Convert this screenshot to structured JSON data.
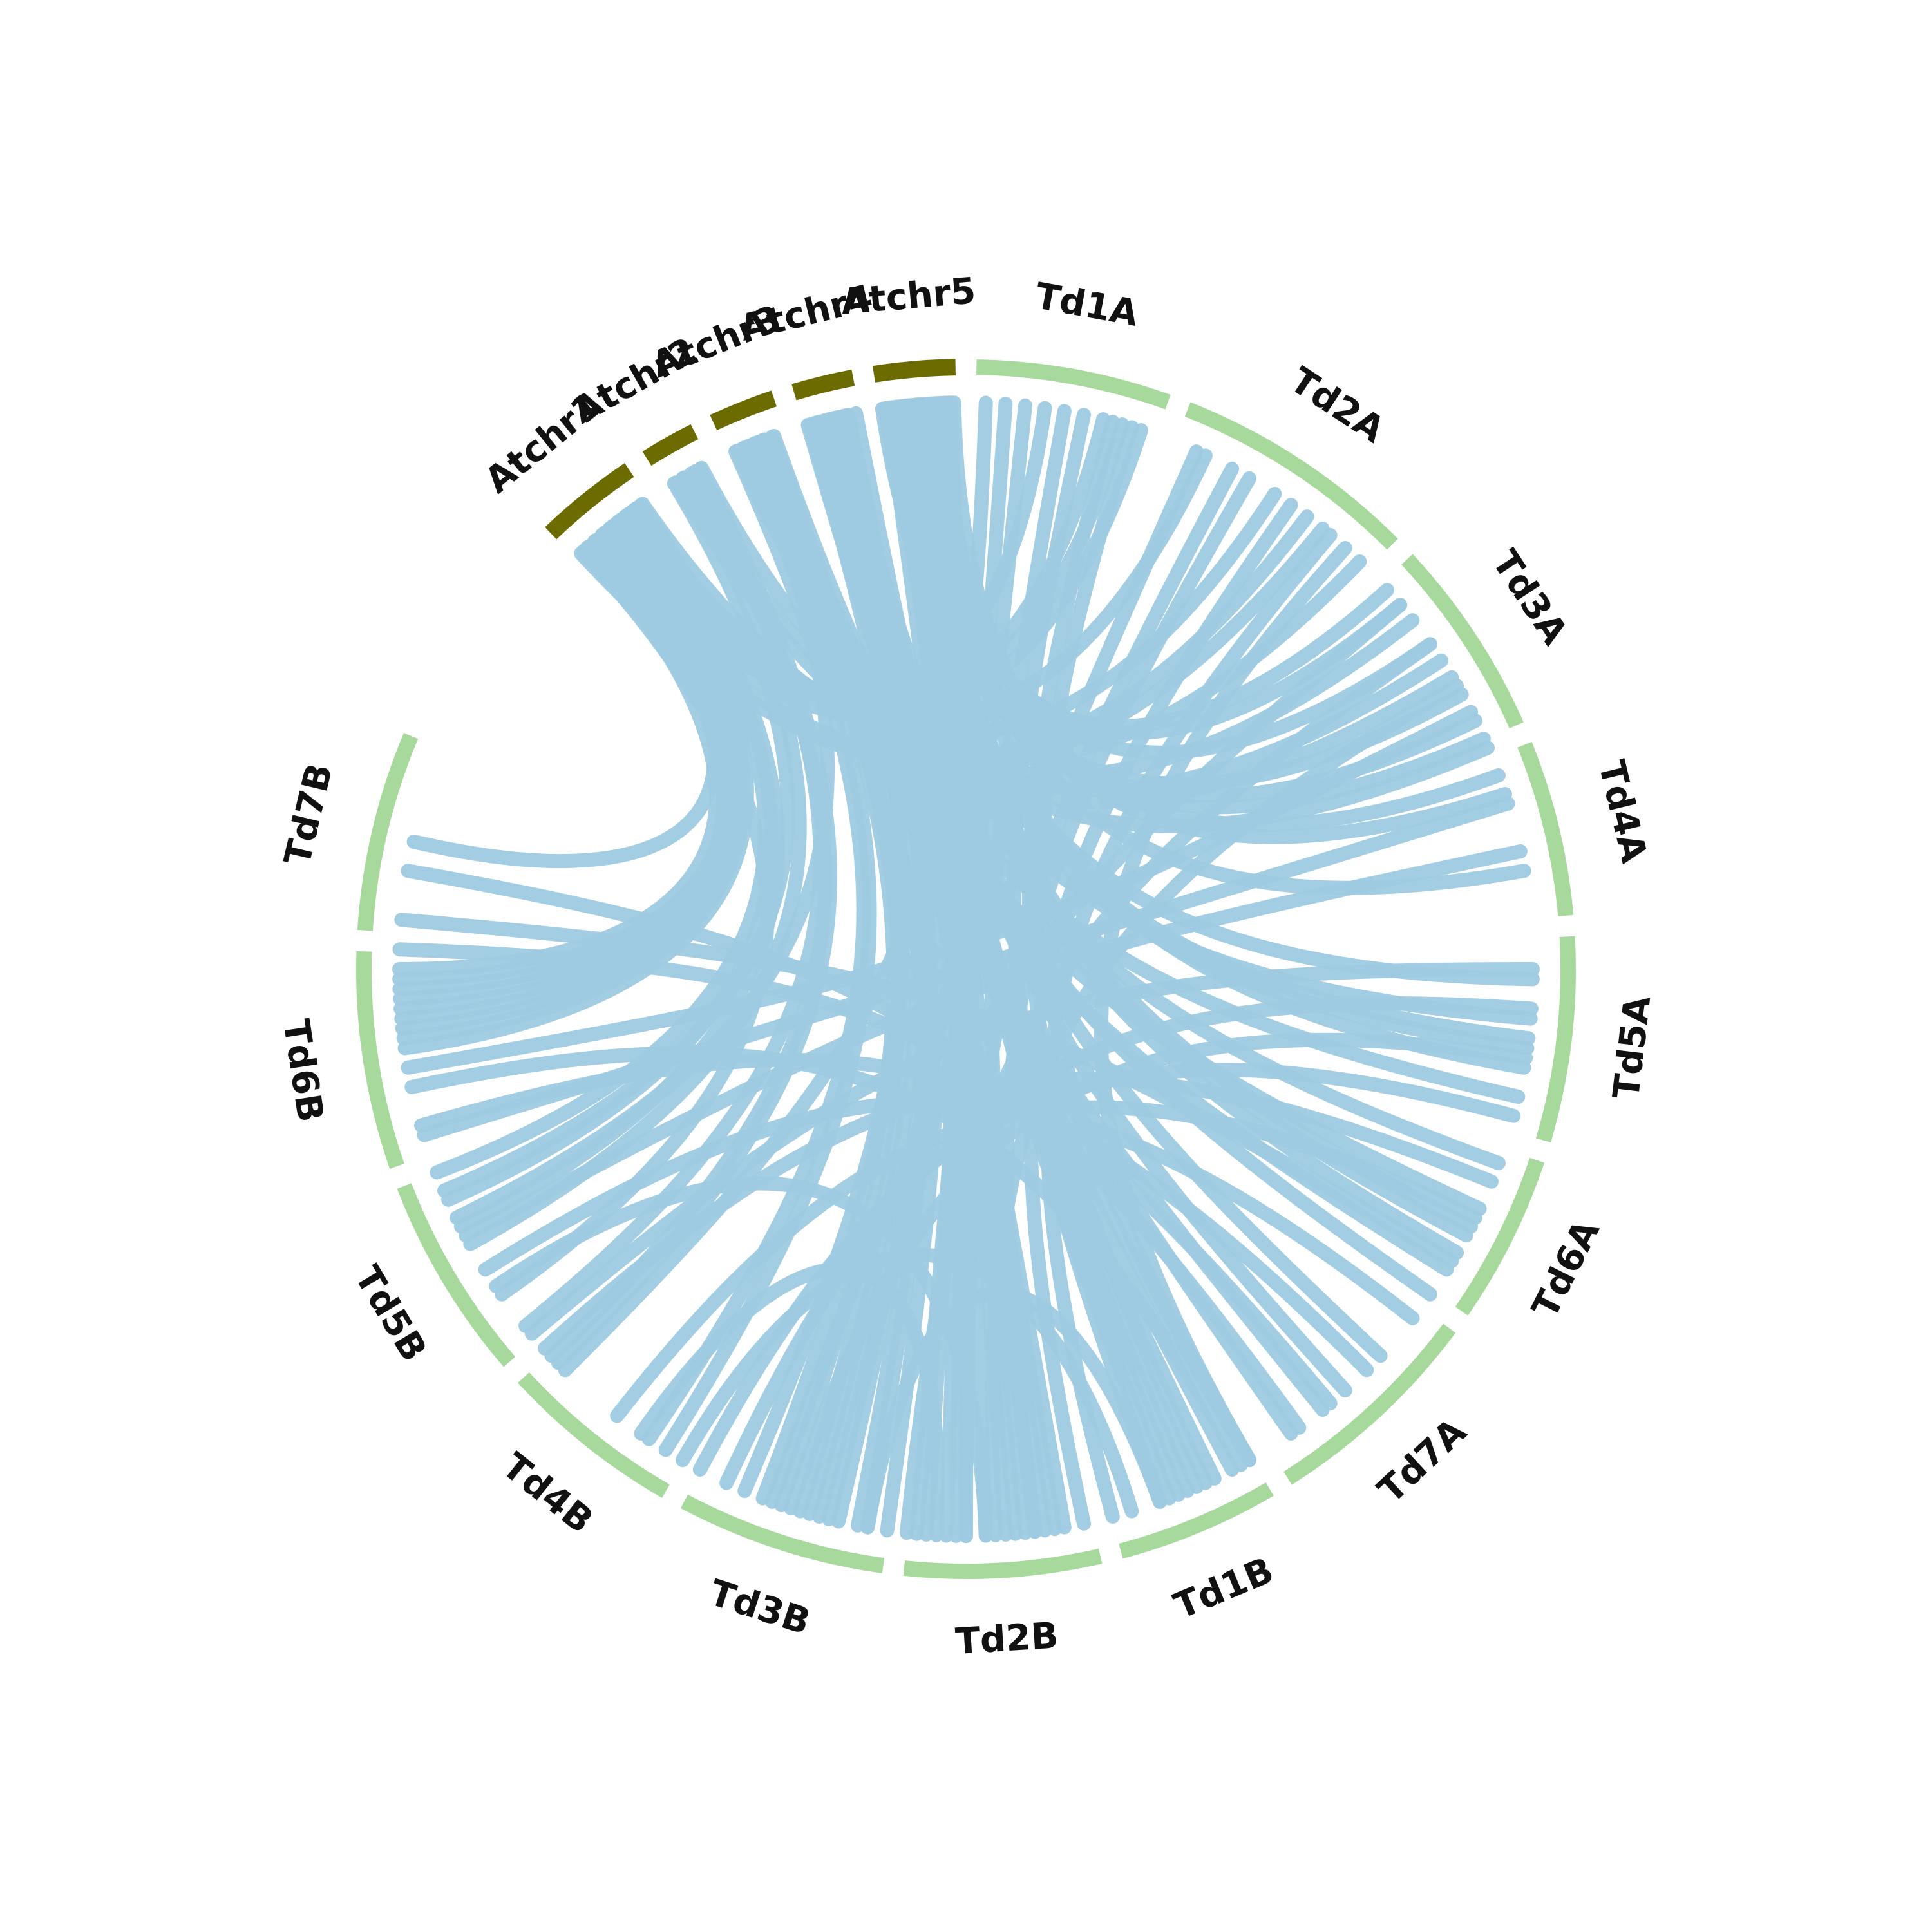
{
  "colors": {
    "arabidopsis": "#6b6b00",
    "wheat": "#a6d99b",
    "link": "#9ecae1"
  },
  "segments": [
    {
      "id": "Atchr1",
      "label": "Atchr1",
      "group": "arabidopsis",
      "start": 316.4,
      "end": 326.0
    },
    {
      "id": "Atchr2",
      "label": "Atchr2",
      "group": "arabidopsis",
      "start": 328.0,
      "end": 333.2
    },
    {
      "id": "Atchr3",
      "label": "Atchr3",
      "group": "arabidopsis",
      "start": 335.2,
      "end": 341.4
    },
    {
      "id": "Atchr4",
      "label": "Atchr4",
      "group": "arabidopsis",
      "start": 343.4,
      "end": 349.2
    },
    {
      "id": "Atchr5",
      "label": "Atchr5",
      "group": "arabidopsis",
      "start": 351.2,
      "end": 359.0
    },
    {
      "id": "Td1A",
      "label": "Td1A",
      "group": "wheat",
      "start": 1.0,
      "end": 19.6
    },
    {
      "id": "Td2A",
      "label": "Td2A",
      "group": "wheat",
      "start": 21.6,
      "end": 45.1
    },
    {
      "id": "Td3A",
      "label": "Td3A",
      "group": "wheat",
      "start": 47.1,
      "end": 66.1
    },
    {
      "id": "Td4A",
      "label": "Td4A",
      "group": "wheat",
      "start": 68.1,
      "end": 84.9
    },
    {
      "id": "Td5A",
      "label": "Td5A",
      "group": "wheat",
      "start": 86.9,
      "end": 106.5
    },
    {
      "id": "Td6A",
      "label": "Td6A",
      "group": "wheat",
      "start": 108.5,
      "end": 124.6
    },
    {
      "id": "Td7A",
      "label": "Td7A",
      "group": "wheat",
      "start": 126.6,
      "end": 147.7
    },
    {
      "id": "Td1B",
      "label": "Td1B",
      "group": "wheat",
      "start": 149.7,
      "end": 165.1
    },
    {
      "id": "Td2B",
      "label": "Td2B",
      "group": "wheat",
      "start": 167.1,
      "end": 185.9
    },
    {
      "id": "Td3B",
      "label": "Td3B",
      "group": "wheat",
      "start": 187.9,
      "end": 207.9
    },
    {
      "id": "Td4B",
      "label": "Td4B",
      "group": "wheat",
      "start": 209.9,
      "end": 227.3
    },
    {
      "id": "Td5B",
      "label": "Td5B",
      "group": "wheat",
      "start": 229.3,
      "end": 248.9
    },
    {
      "id": "Td6B",
      "label": "Td6B",
      "group": "wheat",
      "start": 250.9,
      "end": 271.7
    },
    {
      "id": "Td7B",
      "label": "Td7B",
      "group": "wheat",
      "start": 273.7,
      "end": 292.8
    }
  ],
  "links": [
    {
      "s": 320,
      "t": 283
    },
    {
      "s": 320.5,
      "t": 269
    },
    {
      "s": 321,
      "t": 268
    },
    {
      "s": 321.5,
      "t": 266
    },
    {
      "s": 322,
      "t": 265
    },
    {
      "s": 322.5,
      "t": 264
    },
    {
      "s": 323,
      "t": 263
    },
    {
      "s": 323.5,
      "t": 262
    },
    {
      "s": 324,
      "t": 249
    },
    {
      "s": 324.5,
      "t": 246
    },
    {
      "s": 325,
      "t": 243
    },
    {
      "s": 318,
      "t": 270
    },
    {
      "s": 319,
      "t": 267
    },
    {
      "s": 317.5,
      "t": 235
    },
    {
      "s": 330,
      "t": 241
    },
    {
      "s": 331,
      "t": 227
    },
    {
      "s": 332,
      "t": 226
    },
    {
      "s": 331.5,
      "t": 231
    },
    {
      "s": 329,
      "t": 247
    },
    {
      "s": 336,
      "t": 214
    },
    {
      "s": 337,
      "t": 212
    },
    {
      "s": 338,
      "t": 201
    },
    {
      "s": 338.5,
      "t": 199
    },
    {
      "s": 339,
      "t": 197
    },
    {
      "s": 340,
      "t": 190
    },
    {
      "s": 337.5,
      "t": 244
    },
    {
      "s": 344,
      "t": 203
    },
    {
      "s": 345,
      "t": 196
    },
    {
      "s": 346,
      "t": 193
    },
    {
      "s": 347,
      "t": 191
    },
    {
      "s": 348,
      "t": 188
    },
    {
      "s": 345.5,
      "t": 175
    },
    {
      "s": 346.5,
      "t": 125
    },
    {
      "s": 347.5,
      "t": 110
    },
    {
      "s": 344.5,
      "t": 95
    },
    {
      "s": 352,
      "t": 184
    },
    {
      "s": 353,
      "t": 182
    },
    {
      "s": 353.5,
      "t": 181
    },
    {
      "s": 354,
      "t": 180
    },
    {
      "s": 355,
      "t": 178
    },
    {
      "s": 355.5,
      "t": 176
    },
    {
      "s": 356,
      "t": 174
    },
    {
      "s": 357,
      "t": 171
    },
    {
      "s": 357.5,
      "t": 159
    },
    {
      "s": 358,
      "t": 158
    },
    {
      "s": 358.5,
      "t": 157
    },
    {
      "s": 356.5,
      "t": 156
    },
    {
      "s": 354.5,
      "t": 152
    },
    {
      "s": 352.5,
      "t": 138
    },
    {
      "s": 353.2,
      "t": 133
    },
    {
      "s": 355.2,
      "t": 120
    },
    {
      "s": 356.2,
      "t": 118
    },
    {
      "s": 357.2,
      "t": 117
    },
    {
      "s": 358.2,
      "t": 100
    },
    {
      "s": 352.2,
      "t": 98
    },
    {
      "s": 354.2,
      "t": 97
    },
    {
      "s": 351.8,
      "t": 91
    },
    {
      "s": 356.8,
      "t": 80
    },
    {
      "s": 357.8,
      "t": 72
    },
    {
      "s": 358.8,
      "t": 70
    },
    {
      "s": 352.8,
      "t": 66
    },
    {
      "s": 353.8,
      "t": 64
    },
    {
      "s": 351.5,
      "t": 61
    },
    {
      "s": 355.8,
      "t": 55
    },
    {
      "s": 354.8,
      "t": 50
    },
    {
      "s": 353.6,
      "t": 48
    },
    {
      "s": 320.2,
      "t": 8
    },
    {
      "s": 321.2,
      "t": 14
    },
    {
      "s": 322.2,
      "t": 16
    },
    {
      "s": 319.2,
      "t": 18
    },
    {
      "s": 323.2,
      "t": 25
    },
    {
      "s": 324.2,
      "t": 33
    },
    {
      "s": 318.2,
      "t": 37
    },
    {
      "s": 317.2,
      "t": 39
    },
    {
      "s": 325.2,
      "t": 44
    },
    {
      "s": 330.2,
      "t": 52
    },
    {
      "s": 332.2,
      "t": 57
    },
    {
      "s": 329.2,
      "t": 59
    },
    {
      "s": 336.2,
      "t": 67
    },
    {
      "s": 339.2,
      "t": 103
    },
    {
      "s": 340.2,
      "t": 115
    },
    {
      "s": 338.2,
      "t": 122
    },
    {
      "s": 336.8,
      "t": 141
    },
    {
      "s": 343.8,
      "t": 145
    },
    {
      "s": 346.8,
      "t": 150
    },
    {
      "s": 348.8,
      "t": 154
    },
    {
      "s": 344.8,
      "t": 170
    },
    {
      "s": 347.8,
      "t": 173
    },
    {
      "s": 2,
      "t": 225
    },
    {
      "s": 4,
      "t": 195
    },
    {
      "s": 6,
      "t": 185
    },
    {
      "s": 10,
      "t": 172
    },
    {
      "s": 12,
      "t": 160
    },
    {
      "s": 15,
      "t": 155
    },
    {
      "s": 17,
      "t": 150
    },
    {
      "s": 24,
      "t": 194
    },
    {
      "s": 28,
      "t": 180
    },
    {
      "s": 30,
      "t": 173
    },
    {
      "s": 35,
      "t": 168
    },
    {
      "s": 40,
      "t": 165
    },
    {
      "s": 42,
      "t": 150
    },
    {
      "s": 50,
      "t": 200
    },
    {
      "s": 55,
      "t": 186
    },
    {
      "s": 60,
      "t": 177
    },
    {
      "s": 63,
      "t": 260
    },
    {
      "s": 73,
      "t": 253
    },
    {
      "s": 78,
      "t": 242
    },
    {
      "s": 90,
      "t": 230
    },
    {
      "s": 94,
      "t": 205
    },
    {
      "s": 99,
      "t": 198
    },
    {
      "s": 105,
      "t": 208
    },
    {
      "s": 112,
      "t": 228
    },
    {
      "s": 116,
      "t": 218
    },
    {
      "s": 121,
      "t": 275
    },
    {
      "s": 128,
      "t": 238
    },
    {
      "s": 135,
      "t": 254
    },
    {
      "s": 140,
      "t": 272
    },
    {
      "s": 144,
      "t": 280
    },
    {
      "s": 151,
      "t": 258
    },
    {
      "s": 160,
      "t": 190
    },
    {
      "s": 163,
      "t": 210
    },
    {
      "s": 178,
      "t": 236
    },
    {
      "s": 183,
      "t": 215
    }
  ]
}
